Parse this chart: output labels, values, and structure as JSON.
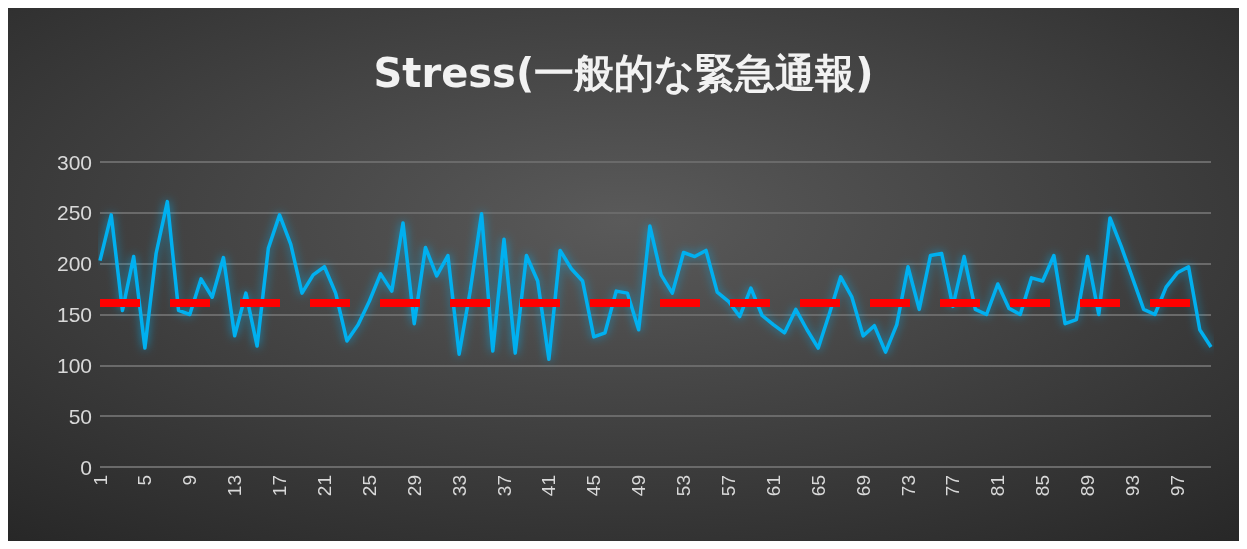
{
  "chart_data": {
    "type": "line",
    "title": "Stress(一般的な緊急通報)",
    "categories": [
      "1",
      null,
      null,
      null,
      "5",
      null,
      null,
      null,
      "9",
      null,
      null,
      null,
      "13",
      null,
      null,
      null,
      "17",
      null,
      null,
      null,
      "21",
      null,
      null,
      null,
      "25",
      null,
      null,
      null,
      "29",
      null,
      null,
      null,
      "33",
      null,
      null,
      null,
      "37",
      null,
      null,
      null,
      "41",
      null,
      null,
      null,
      "45",
      null,
      null,
      null,
      "49",
      null,
      null,
      null,
      "53",
      null,
      null,
      null,
      "57",
      null,
      null,
      null,
      "61",
      null,
      null,
      null,
      "65",
      null,
      null,
      null,
      "69",
      null,
      null,
      null,
      "73",
      null,
      null,
      null,
      "77",
      null,
      null,
      null,
      "81",
      null,
      null,
      null,
      "85",
      null,
      null,
      null,
      "89",
      null,
      null,
      null,
      "93",
      null,
      null,
      null,
      "97",
      null,
      null,
      null
    ],
    "series": [
      {
        "color": "#00b0f0",
        "values": [
          203,
          248,
          154,
          207,
          117,
          210,
          261,
          154,
          150,
          185,
          167,
          206,
          129,
          171,
          119,
          215,
          248,
          219,
          171,
          189,
          197,
          171,
          124,
          140,
          163,
          190,
          173,
          240,
          141,
          216,
          188,
          208,
          111,
          174,
          249,
          114,
          224,
          112,
          208,
          183,
          106,
          213,
          195,
          183,
          128,
          132,
          173,
          171,
          135,
          237,
          189,
          171,
          211,
          207,
          213,
          172,
          163,
          148,
          176,
          149,
          140,
          132,
          155,
          135,
          117,
          151,
          187,
          167,
          129,
          139,
          113,
          140,
          197,
          155,
          208,
          210,
          158,
          207,
          155,
          150,
          180,
          156,
          150,
          186,
          183,
          208,
          141,
          145,
          207,
          150,
          245,
          217,
          186,
          155,
          150,
          177,
          191,
          197,
          135,
          118
        ]
      }
    ],
    "ylim": [
      0,
      300
    ],
    "yticks": [
      0,
      50,
      100,
      150,
      200,
      250,
      300
    ],
    "grid": "y",
    "marker": "none",
    "line_style": "solid",
    "ref_lines": [
      {
        "axis": "y",
        "value": 162,
        "color": "#ff0000",
        "line_style": "dashed"
      }
    ]
  }
}
